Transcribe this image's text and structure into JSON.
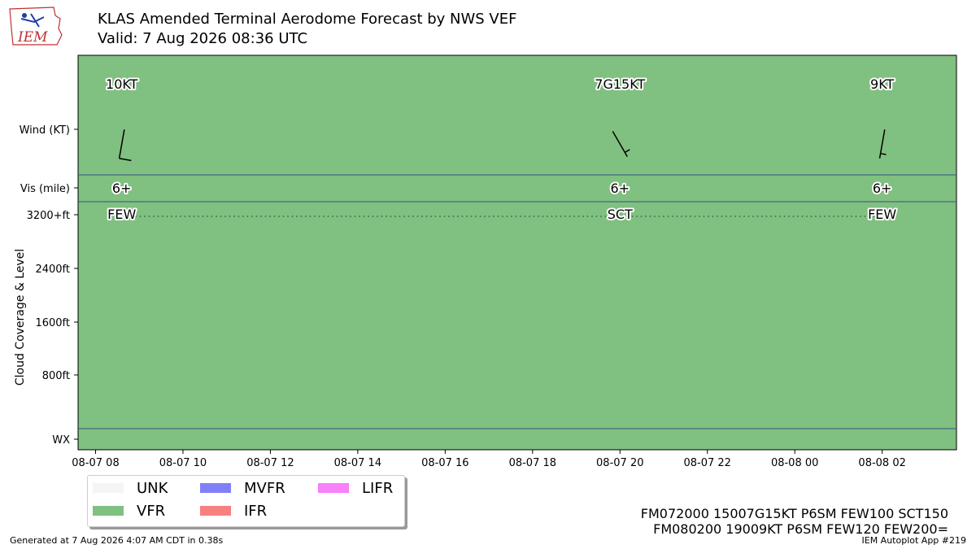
{
  "header": {
    "title": "KLAS Amended Terminal Aerodome Forecast by NWS VEF",
    "valid": "Valid: 7 Aug 2026 08:36 UTC"
  },
  "logo": {
    "text": "IEM"
  },
  "chart_data": {
    "type": "timeline",
    "x_tick_labels": [
      "08-07 08",
      "08-07 10",
      "08-07 12",
      "08-07 14",
      "08-07 16",
      "08-07 18",
      "08-07 20",
      "08-07 22",
      "08-08 00",
      "08-08 02"
    ],
    "x_range_hours": [
      7.6,
      27.7
    ],
    "row_labels": {
      "wind": "Wind (KT)",
      "vis": "Vis (mile)",
      "ceiling_3200": "3200+ft",
      "ceiling_2400": "2400ft",
      "ceiling_1600": "1600ft",
      "ceiling_800": "800ft",
      "wx": "WX"
    },
    "ylabel": "Cloud Coverage & Level",
    "background_category": "VFR",
    "forecasts": [
      {
        "hour": 8.6,
        "wind_label": "10KT",
        "wind_dir": 190,
        "wind_speed": 10,
        "vis": "6+",
        "cloud": "FEW"
      },
      {
        "hour": 20.0,
        "wind_label": "7G15KT",
        "wind_dir": 150,
        "wind_speed": 7,
        "vis": "6+",
        "cloud": "SCT"
      },
      {
        "hour": 26.0,
        "wind_label": "9KT",
        "wind_dir": 190,
        "wind_speed": 9,
        "vis": "6+",
        "cloud": "FEW"
      }
    ]
  },
  "legend": {
    "items": [
      {
        "label": "UNK",
        "color": "#f5f5f5"
      },
      {
        "label": "VFR",
        "color": "#80c080"
      },
      {
        "label": "MVFR",
        "color": "#8080f8"
      },
      {
        "label": "IFR",
        "color": "#f88080"
      },
      {
        "label": "LIFR",
        "color": "#f880f8"
      }
    ]
  },
  "raw_taf": [
    "FM072000 15007G15KT P6SM FEW100 SCT150",
    "FM080200 19009KT P6SM FEW120 FEW200="
  ],
  "footer": {
    "generated": "Generated at 7 Aug 2026 4:07 AM CDT in 0.38s",
    "app": "IEM Autoplot App #219"
  }
}
